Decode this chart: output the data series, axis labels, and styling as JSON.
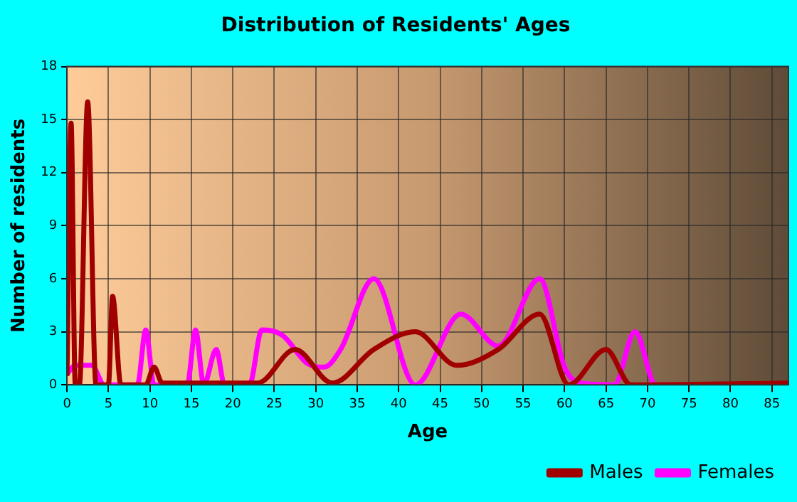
{
  "chart_data": {
    "type": "line",
    "title": "Distribution of Residents' Ages",
    "xlabel": "Age",
    "ylabel": "Number of residents",
    "xlim": [
      0,
      87
    ],
    "xticks": [
      0,
      5,
      10,
      15,
      20,
      25,
      30,
      35,
      40,
      45,
      50,
      55,
      60,
      65,
      70,
      75,
      80,
      85
    ],
    "ylim": [
      0,
      18
    ],
    "yticks": [
      0,
      3,
      6,
      9,
      12,
      15,
      18
    ],
    "grid": true,
    "legend": "bottom right",
    "marker": "none",
    "line_style": "solid",
    "series": [
      {
        "name": "Males",
        "color": "#a00000",
        "x": [
          0,
          0.5,
          1,
          1.5,
          2.5,
          3.5,
          5,
          5.5,
          6.5,
          9.5,
          10.5,
          11.5,
          23,
          27.5,
          32,
          37,
          42,
          47,
          52,
          57,
          60.5,
          65,
          68,
          87
        ],
        "values": [
          0.5,
          14.8,
          0,
          0,
          16,
          0,
          0,
          5,
          0,
          0,
          1,
          0.1,
          0.1,
          2,
          0.1,
          2,
          3,
          1.1,
          2,
          4,
          0,
          2,
          0,
          0.1
        ]
      },
      {
        "name": "Females",
        "color": "#ff00ff",
        "x": [
          0,
          1,
          3,
          4.5,
          8.5,
          9.5,
          10.5,
          14.5,
          15.5,
          16.5,
          18,
          19,
          22,
          23.5,
          26,
          29,
          31,
          33,
          37,
          42,
          47.5,
          52,
          57,
          60,
          62,
          66,
          68.5,
          71,
          87
        ],
        "values": [
          0.6,
          1.1,
          1.1,
          0,
          0,
          3.1,
          0,
          0,
          3.1,
          0,
          2,
          0,
          0,
          3.1,
          2.8,
          1.2,
          1,
          2,
          6,
          0,
          4,
          2.2,
          6,
          1,
          0.1,
          0,
          3,
          0,
          0
        ]
      }
    ]
  }
}
